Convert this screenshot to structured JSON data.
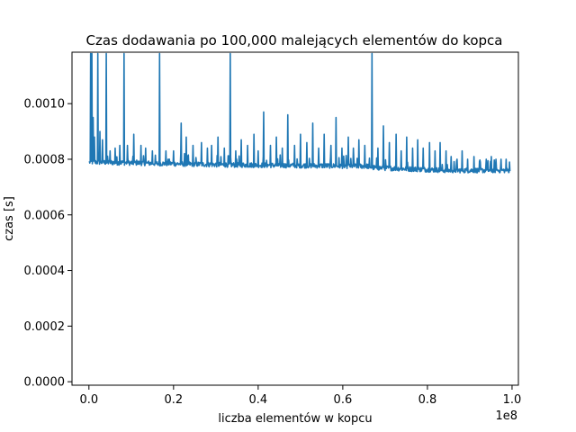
{
  "chart_data": {
    "type": "line",
    "title": "Czas dodawania po 100,000 malejących elementów do kopca",
    "xlabel": "liczba elementów w kopcu",
    "ylabel": "czas [s]",
    "x_offset_label": "1e8",
    "xlim": [
      -4000000,
      101500000
    ],
    "ylim": [
      -1.25e-05,
      0.001185
    ],
    "x_ticks": [
      0,
      20000000,
      40000000,
      60000000,
      80000000,
      100000000
    ],
    "x_tick_labels": [
      "0.0",
      "0.2",
      "0.4",
      "0.6",
      "0.8",
      "1.0"
    ],
    "y_ticks": [
      0,
      0.0002,
      0.0004,
      0.0006,
      0.0008,
      0.001
    ],
    "y_tick_labels": [
      "0.0000",
      "0.0002",
      "0.0004",
      "0.0006",
      "0.0008",
      "0.0010"
    ],
    "grid": false,
    "color": "#1f77b4",
    "series": [
      {
        "x_start": 100000,
        "x_step": 100000,
        "baseline": [
          [
            0,
            0.00079
          ],
          [
            33000000,
            0.00078
          ],
          [
            66000000,
            0.000775
          ],
          [
            67000000,
            0.00077
          ],
          [
            85000000,
            0.00076
          ],
          [
            99500000,
            0.00076
          ]
        ],
        "spikes": [
          [
            400000,
            0.00118
          ],
          [
            700000,
            0.00118
          ],
          [
            1000000,
            0.00095
          ],
          [
            1300000,
            0.00088
          ],
          [
            2100000,
            0.00118
          ],
          [
            2600000,
            0.0009
          ],
          [
            3200000,
            0.00087
          ],
          [
            4100000,
            0.00118
          ],
          [
            5000000,
            0.00083
          ],
          [
            6200000,
            0.00084
          ],
          [
            7300000,
            0.00085
          ],
          [
            8300000,
            0.00118
          ],
          [
            9100000,
            0.00085
          ],
          [
            10600000,
            0.00089
          ],
          [
            12300000,
            0.00085
          ],
          [
            13400000,
            0.00084
          ],
          [
            15000000,
            0.00083
          ],
          [
            16700000,
            0.00118
          ],
          [
            18200000,
            0.00083
          ],
          [
            20000000,
            0.00083
          ],
          [
            21800000,
            0.00093
          ],
          [
            23000000,
            0.00088
          ],
          [
            24600000,
            0.00085
          ],
          [
            26600000,
            0.00086
          ],
          [
            28000000,
            0.00084
          ],
          [
            29000000,
            0.00085
          ],
          [
            30500000,
            0.00088
          ],
          [
            32000000,
            0.00084
          ],
          [
            33400000,
            0.00118
          ],
          [
            34700000,
            0.00083
          ],
          [
            36000000,
            0.00087
          ],
          [
            37500000,
            0.00085
          ],
          [
            39000000,
            0.00089
          ],
          [
            40000000,
            0.00083
          ],
          [
            41300000,
            0.00097
          ],
          [
            42900000,
            0.00085
          ],
          [
            44300000,
            0.00088
          ],
          [
            45700000,
            0.00084
          ],
          [
            47000000,
            0.00096
          ],
          [
            48600000,
            0.00085
          ],
          [
            50000000,
            0.00089
          ],
          [
            51500000,
            0.00086
          ],
          [
            52900000,
            0.00093
          ],
          [
            54300000,
            0.00084
          ],
          [
            55600000,
            0.00089
          ],
          [
            57200000,
            0.00085
          ],
          [
            58400000,
            0.00095
          ],
          [
            59800000,
            0.00084
          ],
          [
            61300000,
            0.00088
          ],
          [
            62500000,
            0.00084
          ],
          [
            63800000,
            0.00087
          ],
          [
            65200000,
            0.00085
          ],
          [
            66900000,
            0.00118
          ],
          [
            68300000,
            0.00084
          ],
          [
            69600000,
            0.00092
          ],
          [
            71000000,
            0.00086
          ],
          [
            72600000,
            0.00089
          ],
          [
            73800000,
            0.00083
          ],
          [
            75100000,
            0.00088
          ],
          [
            76500000,
            0.00084
          ],
          [
            77700000,
            0.00087
          ],
          [
            79000000,
            0.00084
          ],
          [
            80500000,
            0.00086
          ],
          [
            81800000,
            0.00083
          ],
          [
            83000000,
            0.00086
          ],
          [
            84400000,
            0.00083
          ],
          [
            85600000,
            0.00081
          ],
          [
            87000000,
            0.0008
          ],
          [
            88200000,
            0.00083
          ],
          [
            89500000,
            0.0008
          ],
          [
            91000000,
            0.00081
          ],
          [
            92500000,
            0.00079
          ],
          [
            93900000,
            0.0008
          ],
          [
            95100000,
            0.00081
          ],
          [
            96200000,
            0.0008
          ],
          [
            97400000,
            0.0008
          ],
          [
            98600000,
            0.0008
          ],
          [
            99400000,
            0.00079
          ]
        ]
      }
    ]
  }
}
